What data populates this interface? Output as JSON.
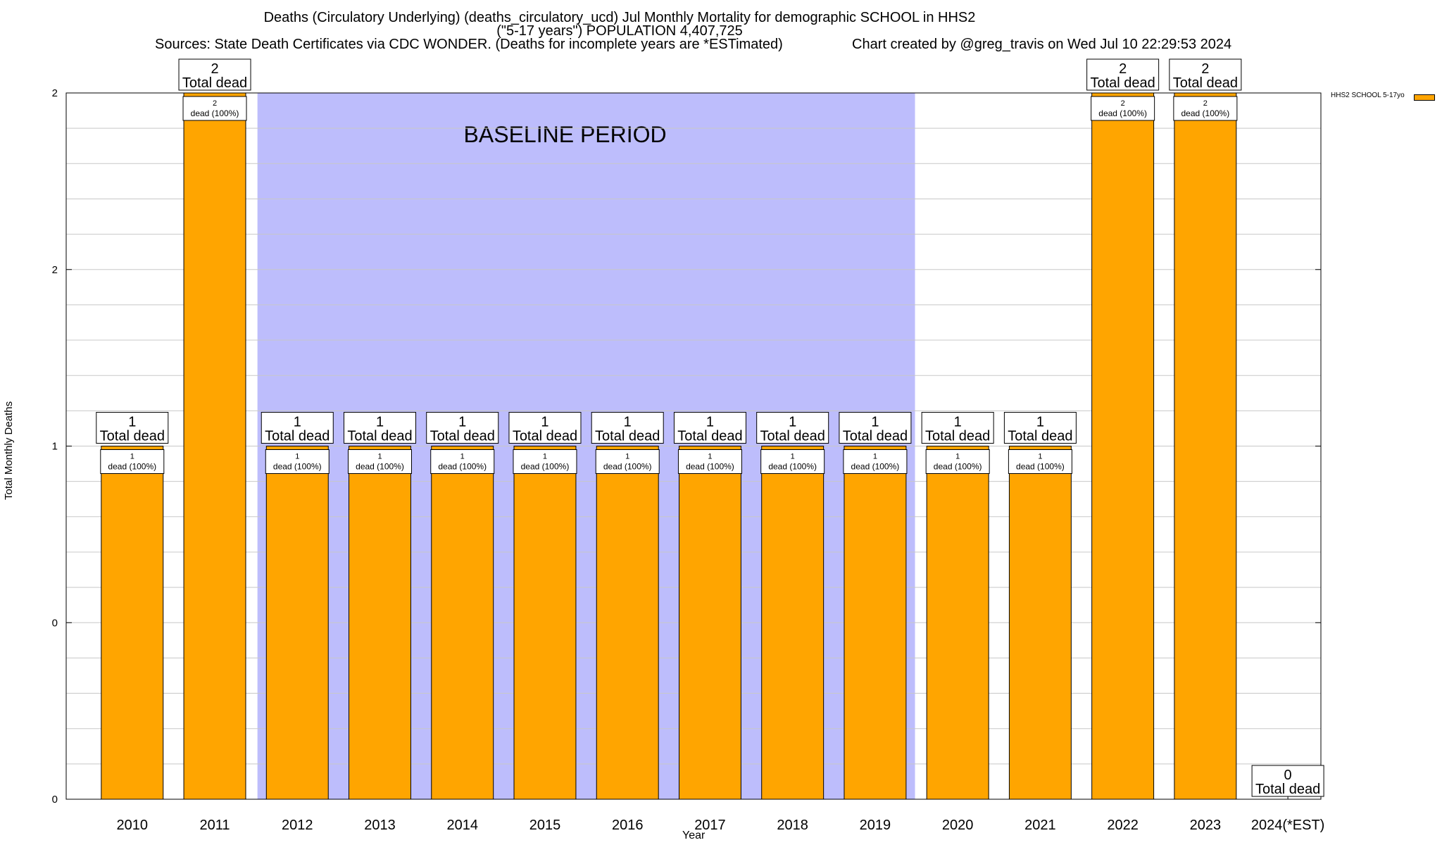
{
  "chart_data": {
    "type": "bar",
    "title_line1": "Deaths (Circulatory Underlying) (deaths_circulatory_ucd) Jul Monthly Mortality for demographic SCHOOL in HHS2",
    "title_line2": "(\"5-17 years\") POPULATION 4,407,725",
    "title_line3": "Sources: State Death Certificates via CDC WONDER. (Deaths for incomplete years are *ESTimated)",
    "credit": "Chart created by @greg_travis on Wed Jul 10 22:29:53 2024",
    "xlabel": "Year",
    "ylabel": "Total Monthly Deaths",
    "categories": [
      "2010",
      "2011",
      "2012",
      "2013",
      "2014",
      "2015",
      "2016",
      "2017",
      "2018",
      "2019",
      "2020",
      "2021",
      "2022",
      "2023",
      "2024(*EST)"
    ],
    "series": [
      {
        "name": "HHS2 SCHOOL 5-17yo",
        "color": "#ffa500",
        "values": [
          1,
          2,
          1,
          1,
          1,
          1,
          1,
          1,
          1,
          1,
          1,
          1,
          2,
          2,
          0
        ]
      }
    ],
    "bar_inner_labels": [
      "1\ndead (100%)",
      "2\ndead (100%)",
      "1\ndead (100%)",
      "1\ndead (100%)",
      "1\ndead (100%)",
      "1\ndead (100%)",
      "1\ndead (100%)",
      "1\ndead (100%)",
      "1\ndead (100%)",
      "1\ndead (100%)",
      "1\ndead (100%)",
      "1\ndead (100%)",
      "2\ndead (100%)",
      "2\ndead (100%)",
      ""
    ],
    "total_labels": [
      "1\nTotal dead",
      "2\nTotal dead",
      "1\nTotal dead",
      "1\nTotal dead",
      "1\nTotal dead",
      "1\nTotal dead",
      "1\nTotal dead",
      "1\nTotal dead",
      "1\nTotal dead",
      "1\nTotal dead",
      "1\nTotal dead",
      "1\nTotal dead",
      "2\nTotal dead",
      "2\nTotal dead",
      "0\nTotal dead"
    ],
    "ylim": [
      0,
      2
    ],
    "y_tick_labels": [
      "0",
      "0",
      "1",
      "2",
      "2"
    ],
    "y_tick_values": [
      0,
      0.5,
      1,
      1.5,
      2
    ],
    "baseline": {
      "label": "BASELINE PERIOD",
      "start": "2012",
      "end": "2019",
      "color": "#bdbdfc"
    },
    "grid": true,
    "legend_position": "top-right"
  }
}
